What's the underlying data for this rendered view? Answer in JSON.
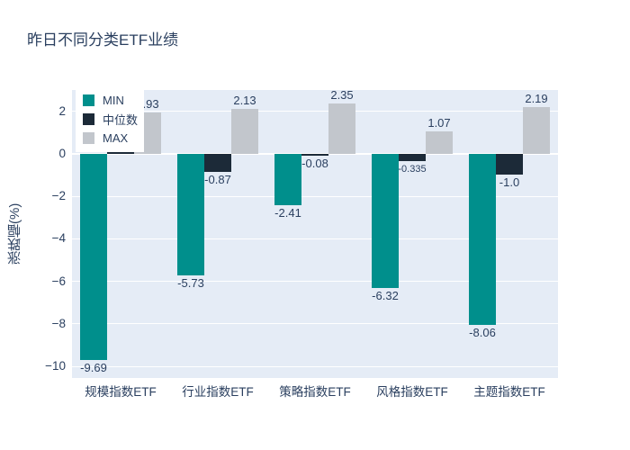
{
  "page": {
    "background": "#ffffff"
  },
  "title": "昨日不同分类ETF业绩",
  "colors": {
    "min_bar": "#008F8C",
    "median_bar": "#1C2A38",
    "max_bar": "#C2C6CC",
    "plot_background": "#E5ECF6",
    "grid_line": "#FFFFFF",
    "text": "#2A3F5F"
  },
  "chart_data": {
    "type": "bar",
    "title": "昨日不同分类ETF业绩",
    "xlabel": "",
    "ylabel": "涨跌幅(%)",
    "categories": [
      "规模指数ETF",
      "行业指数ETF",
      "策略指数ETF",
      "风格指数ETF",
      "主题指数ETF"
    ],
    "series": [
      {
        "name": "MIN",
        "color": "#008F8C",
        "values": [
          -9.69,
          -5.73,
          -2.41,
          -6.32,
          -8.06
        ],
        "labels": [
          "-9.69",
          "-5.73",
          "-2.41",
          "-6.32",
          "-8.06"
        ]
      },
      {
        "name": "中位数",
        "color": "#1C2A38",
        "values": [
          0.19,
          -0.87,
          -0.08,
          -0.335,
          -1.0
        ],
        "labels": [
          "",
          "-0.87",
          "-0.08",
          "-0.335",
          "-1.0"
        ]
      },
      {
        "name": "MAX",
        "color": "#C2C6CC",
        "values": [
          1.93,
          2.13,
          2.35,
          1.07,
          2.19
        ],
        "labels": [
          "1.93",
          "2.13",
          "2.35",
          "1.07",
          "2.19"
        ]
      }
    ],
    "yticks": [
      2,
      0,
      -2,
      -4,
      -6,
      -8,
      -10
    ],
    "ylim": [
      -10.55,
      3.0
    ],
    "grid": true,
    "legend_position": "top-left-inside"
  }
}
